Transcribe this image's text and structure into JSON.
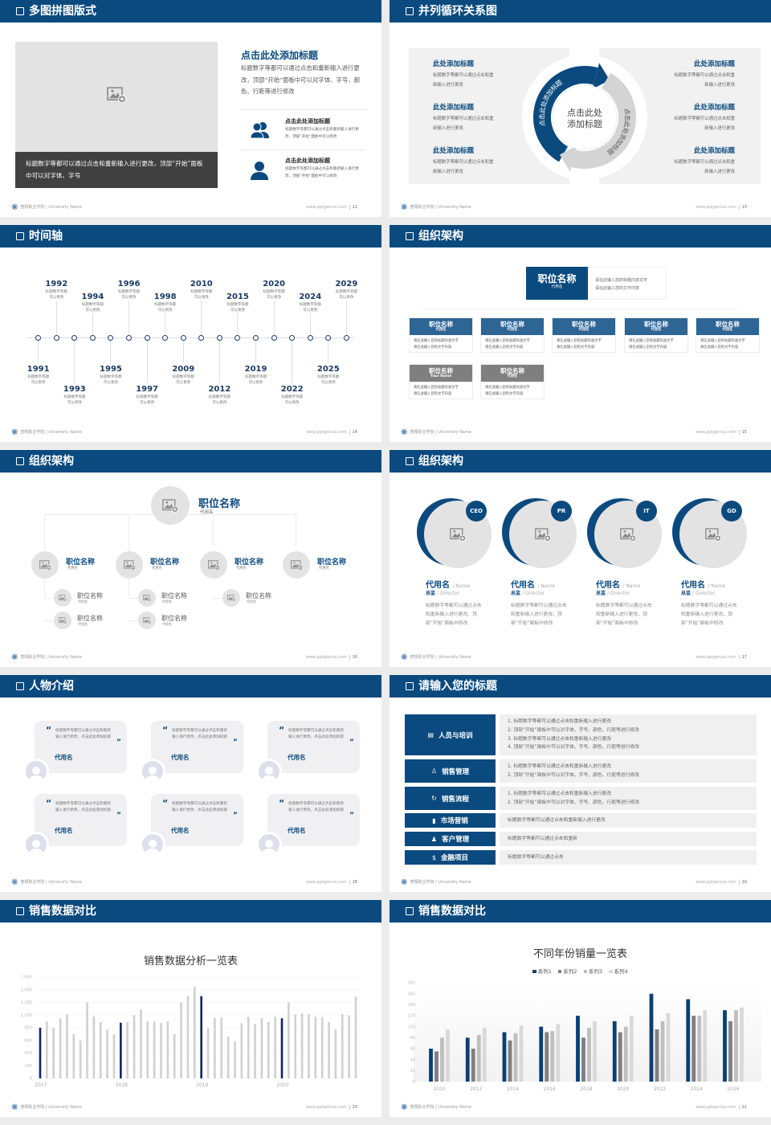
{
  "footer": {
    "school": "宽翔职业学院 | University Name",
    "site": "www.pptgenius.com"
  },
  "colors": {
    "primary": "#0b4a7e",
    "panel": "#f1f1f1",
    "caption_bg": "#404040"
  },
  "slides": [
    {
      "title": "多图拼图版式",
      "page": "12",
      "caption": "标题数字等都可以通过点击和重新输入进行更改，顶部“开始”面板中可以对字体、字号",
      "heading": "点击此处添加标题",
      "body": "标题数字等都可以通过点击和重新输入进行更改，顶部“开始”面板中可以对字体、字号、颜色、行距等进行修改",
      "items": [
        {
          "title": "点击此处添加标题",
          "text": "标题数字等都可以通过点击和重新输入进行更改，顶部“开始”面板中可以修改",
          "icon": "users-icon"
        },
        {
          "title": "点击此处添加标题",
          "text": "标题数字等都可以通过点击和重新输入进行更改，顶部“开始”面板中可以修改",
          "icon": "user-icon"
        }
      ]
    },
    {
      "title": "并列循环关系图",
      "page": "13",
      "center": [
        "点击此处",
        "添加标题"
      ],
      "arc_left": "点击此处添加标题",
      "arc_right": "点击此处添加标题",
      "left_items": [
        {
          "title": "此处添加标题",
          "lines": [
            "标题数字等都可以通过点击和重",
            "新输入进行更改"
          ]
        },
        {
          "title": "此处添加标题",
          "lines": [
            "标题数字等都可以通过点击和重",
            "新输入进行更改"
          ]
        },
        {
          "title": "此处添加标题",
          "lines": [
            "标题数字等都可以通过点击和重",
            "新输入进行更改"
          ]
        }
      ],
      "right_items": [
        {
          "title": "此处添加标题",
          "lines": [
            "标题数字等都可以通过点击和重",
            "新输入进行更改"
          ]
        },
        {
          "title": "此处添加标题",
          "lines": [
            "标题数字等都可以通过点击和重",
            "新输入进行更改"
          ]
        },
        {
          "title": "此处添加标题",
          "lines": [
            "标题数字等都可以通过点击和重",
            "新输入进行更改"
          ]
        }
      ]
    },
    {
      "title": "时间轴",
      "page": "14",
      "events": [
        {
          "year": "1991",
          "lines": [
            "标题数字等都",
            "可以更改"
          ],
          "side": "bottom"
        },
        {
          "year": "1992",
          "lines": [
            "标题数字等都",
            "可以更改"
          ],
          "side": "top"
        },
        {
          "year": "1993",
          "lines": [
            "标题数字等都",
            "可以更改"
          ],
          "side": "bottom"
        },
        {
          "year": "1994",
          "lines": [
            "标题数字等都",
            "可以更改"
          ],
          "side": "top"
        },
        {
          "year": "1995",
          "lines": [
            "标题数字等都",
            "可以更改"
          ],
          "side": "bottom"
        },
        {
          "year": "1996",
          "lines": [
            "标题数字等都",
            "可以更改"
          ],
          "side": "top"
        },
        {
          "year": "1997",
          "lines": [
            "标题数字等都",
            "可以更改"
          ],
          "side": "bottom"
        },
        {
          "year": "1998",
          "lines": [
            "标题数字等都",
            "可以更改"
          ],
          "side": "top"
        },
        {
          "year": "2009",
          "lines": [
            "标题数字等都",
            "可以更改"
          ],
          "side": "bottom"
        },
        {
          "year": "2010",
          "lines": [
            "标题数字等都",
            "可以更改"
          ],
          "side": "top"
        },
        {
          "year": "2012",
          "lines": [
            "标题数字等都",
            "可以更改"
          ],
          "side": "bottom"
        },
        {
          "year": "2015",
          "lines": [
            "标题数字等都",
            "可以更改"
          ],
          "side": "top"
        },
        {
          "year": "2019",
          "lines": [
            "标题数字等都",
            "可以更改"
          ],
          "side": "bottom"
        },
        {
          "year": "2020",
          "lines": [
            "标题数字等都",
            "可以更改"
          ],
          "side": "top"
        },
        {
          "year": "2022",
          "lines": [
            "标题数字等都",
            "可以更改"
          ],
          "side": "bottom"
        },
        {
          "year": "2024",
          "lines": [
            "标题数字等都",
            "可以更改"
          ],
          "side": "top"
        },
        {
          "year": "2025",
          "lines": [
            "标题数字等都",
            "可以更改"
          ],
          "side": "bottom"
        },
        {
          "year": "2029",
          "lines": [
            "标题数字等都",
            "可以更改"
          ],
          "side": "top"
        }
      ]
    },
    {
      "title": "组织架构",
      "page": "15",
      "top": {
        "title": "职位名称",
        "sub": "代用名",
        "lines": [
          "请在此输入您的标题内容文字",
          "请在此输入您的文字内容"
        ]
      },
      "boxes": [
        {
          "title": "职位名称",
          "sub": "代用名",
          "lines": [
            "请在此输入您的标题内容文字",
            "请在此输入您的文字内容"
          ],
          "tone": "blue"
        },
        {
          "title": "职位名称",
          "sub": "代用名",
          "lines": [
            "请在此输入您的标题内容文字",
            "请在此输入您的文字内容"
          ],
          "tone": "blue"
        },
        {
          "title": "职位名称",
          "sub": "代用名",
          "lines": [
            "请在此输入您的标题内容文字",
            "请在此输入您的文字内容"
          ],
          "tone": "blue"
        },
        {
          "title": "职位名称",
          "sub": "代用名",
          "lines": [
            "请在此输入您的标题内容文字",
            "请在此输入您的文字内容"
          ],
          "tone": "blue"
        },
        {
          "title": "职位名称",
          "sub": "代用名",
          "lines": [
            "请在此输入您的标题内容文字",
            "请在此输入您的文字内容"
          ],
          "tone": "blue"
        },
        {
          "title": "职位名称",
          "sub": "Your Name",
          "lines": [
            "请在此输入您的标题内容文字",
            "请在此输入您的文字内容"
          ],
          "tone": "gray"
        },
        {
          "title": "职位名称",
          "sub": "代用名",
          "lines": [
            "请在此输入您的标题内容文字",
            "请在此输入您的文字内容"
          ],
          "tone": "gray"
        }
      ]
    },
    {
      "title": "组织架构",
      "page": "16",
      "top": {
        "title": "职位名称",
        "sub": "代用名"
      },
      "level2": [
        {
          "title": "职位名称",
          "sub": "代用名"
        },
        {
          "title": "职位名称",
          "sub": "代用名"
        },
        {
          "title": "职位名称",
          "sub": "代用名"
        },
        {
          "title": "职位名称",
          "sub": "代用名"
        }
      ],
      "level3": [
        {
          "title": "职位名称",
          "sub": "代用名"
        },
        {
          "title": "职位名称",
          "sub": "代用名"
        },
        {
          "title": "职位名称",
          "sub": "代用名"
        },
        {
          "title": "职位名称",
          "sub": "代用名"
        },
        {
          "title": "职位名称",
          "sub": "代用名"
        }
      ]
    },
    {
      "title": "组织架构",
      "page": "17",
      "members": [
        {
          "badge": "CEO",
          "name": "代用名",
          "name_en": "/ Name",
          "role": "总监",
          "role_en": "/ Director",
          "text": "标题数字等都可以通过点击和重新输入进行更改，顶部“开始”面板中修改"
        },
        {
          "badge": "PR",
          "name": "代用名",
          "name_en": "/ Name",
          "role": "总监",
          "role_en": "/ Director",
          "text": "标题数字等都可以通过点击和重新输入进行更改，顶部“开始”面板中修改"
        },
        {
          "badge": "IT",
          "name": "代用名",
          "name_en": "/ Name",
          "role": "总监",
          "role_en": "/ Director",
          "text": "标题数字等都可以通过点击和重新输入进行更改，顶部“开始”面板中修改"
        },
        {
          "badge": "GD",
          "name": "代用名",
          "name_en": "/ Name",
          "role": "总监",
          "role_en": "/ Director",
          "text": "标题数字等都可以通过点击和重新输入进行更改，顶部“开始”面板中修改"
        }
      ]
    },
    {
      "title": "人物介绍",
      "page": "18",
      "cards": [
        {
          "text": "标题数字等都可以通过点击和重新输入进行更改，点击此处添加标题",
          "name": "代用名"
        },
        {
          "text": "标题数字等都可以通过点击和重新输入进行更改，点击此处添加标题",
          "name": "代用名"
        },
        {
          "text": "标题数字等都可以通过点击和重新输入进行更改，点击此处添加标题",
          "name": "代用名"
        },
        {
          "text": "标题数字等都可以通过点击和重新输入进行更改，点击此处添加标题",
          "name": "代用名"
        },
        {
          "text": "标题数字等都可以通过点击和重新输入进行更改，点击此处添加标题",
          "name": "代用名"
        },
        {
          "text": "标题数字等都可以通过点击和重新输入进行更改，点击此处添加标题",
          "name": "代用名"
        }
      ]
    },
    {
      "title": "请输入您的标题",
      "page": "19",
      "rows": [
        {
          "label": "人员与培训",
          "icon": "training-icon",
          "lines": [
            "1.   标题数字等都可以通过点击和重新输入进行更改",
            "2.   顶部“开始”面板中可以对字体、字号、颜色、行距等进行修改",
            "3.   标题数字等都可以通过点击和重新输入进行更改",
            "4.   顶部“开始”面板中可以对字体、字号、颜色、行距等进行修改"
          ]
        },
        {
          "label": "销售管理",
          "icon": "sales-management-icon",
          "lines": [
            "1.   标题数字等都可以通过点击和重新输入进行更改",
            "2.   顶部“开始”面板中可以对字体、字号、颜色、行距等进行修改"
          ]
        },
        {
          "label": "销售流程",
          "icon": "cycle-icon",
          "lines": [
            "1.   标题数字等都可以通过点击和重新输入进行更改",
            "2.   顶部“开始”面板中可以对字体、字号、颜色、行距等进行修改"
          ]
        },
        {
          "label": "市场营销",
          "icon": "bar-chart-icon",
          "lines": [
            "标题数字等都可以通过点击和重新输入进行更改"
          ]
        },
        {
          "label": "客户管理",
          "icon": "customers-icon",
          "lines": [
            "标题数字等都可以通过点击和重新"
          ]
        },
        {
          "label": "金融项目",
          "icon": "finance-icon",
          "lines": [
            "标题数字等都可以通过点击"
          ]
        }
      ]
    },
    {
      "title": "销售数据对比",
      "page": "20"
    },
    {
      "title": "销售数据对比",
      "page": "21"
    }
  ],
  "chart_data": [
    {
      "type": "bar",
      "title": "销售数据分析一览表",
      "ylim": [
        0,
        1600
      ],
      "yticks": [
        "0",
        "200",
        "400",
        "600",
        "800",
        "1,000",
        "1,200",
        "1,400",
        "1,600"
      ],
      "xtick_labels": [
        "2017",
        "2018",
        "2019",
        "2020"
      ],
      "categories_per_year": 12,
      "grid": true,
      "highlight_color": "#13226a",
      "bar_color": "#d0d0d0",
      "values": [
        800,
        900,
        800,
        950,
        1010,
        700,
        600,
        1200,
        980,
        890,
        775,
        700,
        880,
        890,
        1000,
        1090,
        900,
        900,
        875,
        900,
        700,
        1200,
        1300,
        1450,
        1300,
        800,
        955,
        965,
        660,
        585,
        870,
        970,
        860,
        955,
        890,
        975,
        950,
        1200,
        1010,
        1025,
        1020,
        975,
        965,
        890,
        775,
        1015,
        995,
        1290
      ]
    },
    {
      "type": "bar",
      "title": "不同年份销量一览表",
      "categories": [
        "2010",
        "2012",
        "2014",
        "2016",
        "2018",
        "2020",
        "2022",
        "2024",
        "2026"
      ],
      "ylim": [
        0,
        180
      ],
      "yticks": [
        "0",
        "20",
        "40",
        "60",
        "80",
        "100",
        "120",
        "140",
        "160",
        "180"
      ],
      "legend": "top",
      "series": [
        {
          "name": "系列1",
          "color": "#0b3f73",
          "values": [
            60,
            80,
            90,
            100,
            120,
            110,
            160,
            150,
            130
          ]
        },
        {
          "name": "系列2",
          "color": "#808080",
          "values": [
            55,
            60,
            75,
            90,
            80,
            90,
            95,
            120,
            110
          ]
        },
        {
          "name": "系列3",
          "color": "#bfbfbf",
          "values": [
            80,
            85,
            88,
            92,
            98,
            100,
            110,
            120,
            130
          ]
        },
        {
          "name": "系列4",
          "color": "#d9d9d9",
          "values": [
            95,
            98,
            102,
            105,
            110,
            120,
            125,
            130,
            135
          ]
        }
      ]
    }
  ]
}
